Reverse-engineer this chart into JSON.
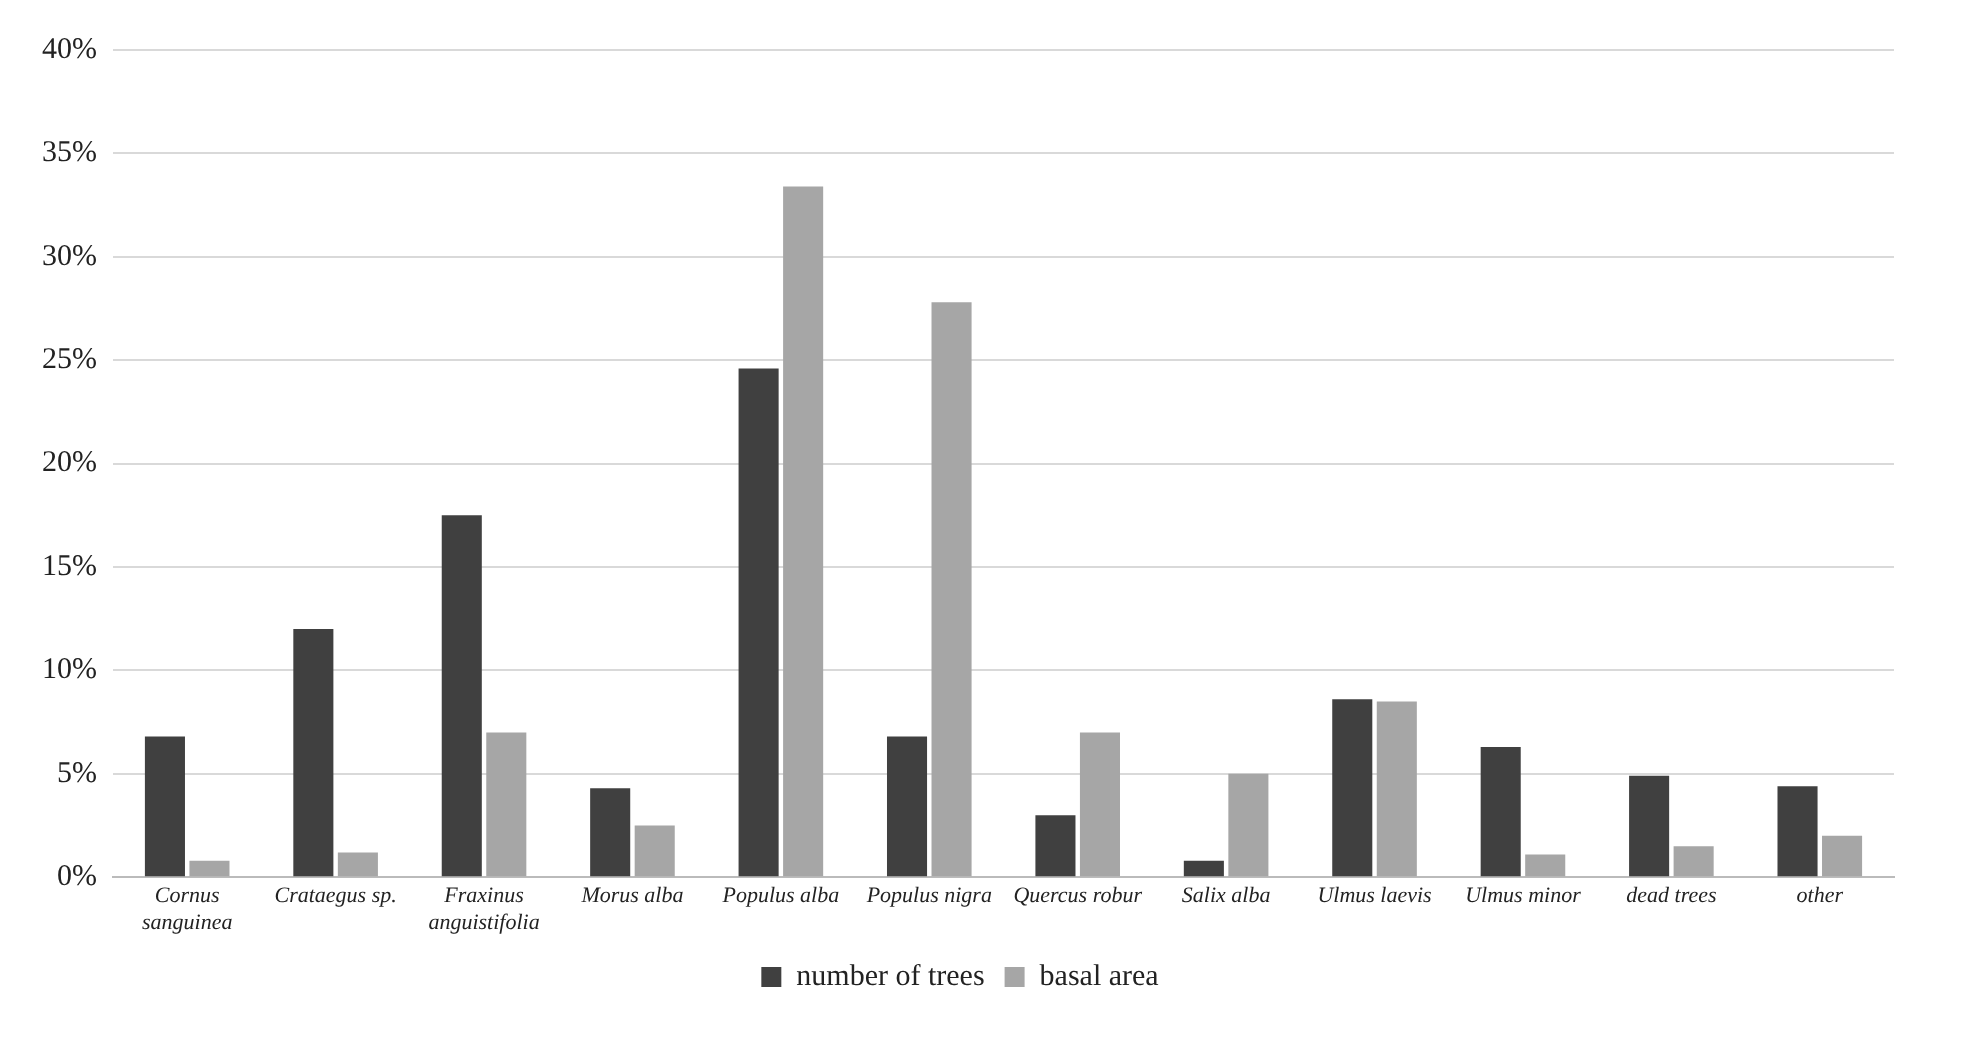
{
  "chart_data": {
    "type": "bar",
    "categories": [
      "Cornus sanguinea",
      "Crataegus sp.",
      "Fraxinus anguistifolia",
      "Morus alba",
      "Populus alba",
      "Populus nigra",
      "Quercus robur",
      "Salix alba",
      "Ulmus laevis",
      "Ulmus minor",
      "dead trees",
      "other"
    ],
    "series": [
      {
        "name": "number of trees",
        "color": "#404040",
        "values": [
          6.8,
          12.0,
          17.5,
          4.3,
          24.6,
          6.8,
          3.0,
          0.8,
          8.6,
          6.3,
          4.9,
          4.4
        ]
      },
      {
        "name": "basal area",
        "color": "#a6a6a6",
        "values": [
          0.8,
          1.2,
          7.0,
          2.5,
          33.4,
          27.8,
          7.0,
          5.0,
          8.5,
          1.1,
          1.5,
          2.0
        ]
      }
    ],
    "ylim": [
      0,
      40
    ],
    "yticks": [
      {
        "value": 0,
        "label": "0%"
      },
      {
        "value": 5,
        "label": "5%"
      },
      {
        "value": 10,
        "label": "10%"
      },
      {
        "value": 15,
        "label": "15%"
      },
      {
        "value": 20,
        "label": "20%"
      },
      {
        "value": 25,
        "label": "25%"
      },
      {
        "value": 30,
        "label": "30%"
      },
      {
        "value": 35,
        "label": "35%"
      },
      {
        "value": 40,
        "label": "40%"
      }
    ],
    "grid": "y",
    "legend": "bottom"
  }
}
